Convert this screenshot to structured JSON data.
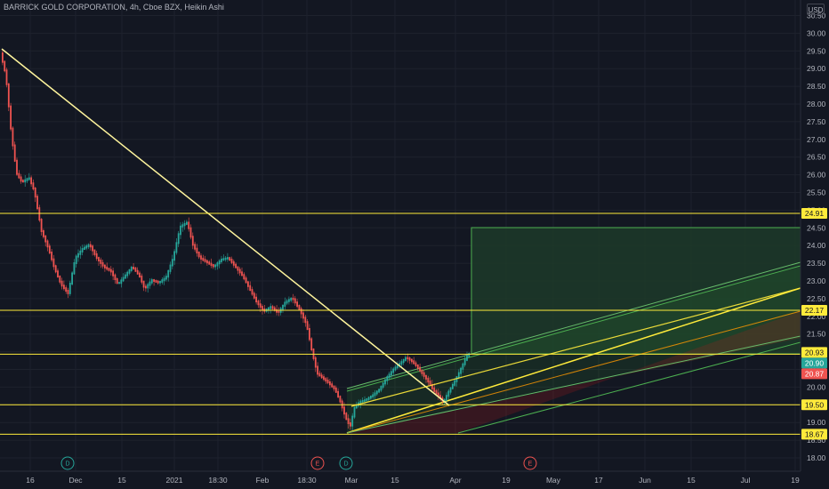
{
  "header": {
    "title": "BARRICK GOLD CORPORATION, 4h, Cboe BZX, Heikin Ashi",
    "currency": "USD"
  },
  "price_axis": {
    "ticks": [
      "30.50",
      "30.00",
      "29.50",
      "29.00",
      "28.50",
      "28.00",
      "27.50",
      "27.00",
      "26.50",
      "26.00",
      "25.50",
      "25.00",
      "24.50",
      "24.00",
      "23.50",
      "23.00",
      "22.50",
      "22.00",
      "21.50",
      "21.00",
      "20.50",
      "20.00",
      "19.50",
      "19.00",
      "18.50",
      "18.00"
    ]
  },
  "time_axis": {
    "ticks": [
      "16",
      "Dec",
      "15",
      "2021",
      "18:30",
      "Feb",
      "18:30",
      "Mar",
      "15",
      "Apr",
      "19",
      "May",
      "17",
      "Jun",
      "15",
      "Jul",
      "19"
    ]
  },
  "horizontal_levels": [
    {
      "value": "24.91",
      "color": "#ffeb3b"
    },
    {
      "value": "22.17",
      "color": "#ffeb3b"
    },
    {
      "value": "20.93",
      "color": "#ffeb3b"
    },
    {
      "value": "19.50",
      "color": "#ffeb3b"
    },
    {
      "value": "18.67",
      "color": "#ffeb3b"
    }
  ],
  "price_tags": [
    {
      "value": "24.91",
      "bg": "#ffeb3b",
      "fg": "#131722"
    },
    {
      "value": "22.17",
      "bg": "#ffeb3b",
      "fg": "#131722"
    },
    {
      "value": "20.93",
      "bg": "#ffeb3b",
      "fg": "#131722"
    },
    {
      "value": "20.90",
      "bg": "#26a69a",
      "fg": "#ffffff"
    },
    {
      "value": "20.87",
      "bg": "#ef5350",
      "fg": "#ffffff"
    },
    {
      "value": "19.50",
      "bg": "#ffeb3b",
      "fg": "#131722"
    },
    {
      "value": "18.67",
      "bg": "#ffeb3b",
      "fg": "#131722"
    }
  ],
  "event_markers": [
    {
      "letter": "D",
      "type": "dividend",
      "color": "#26a69a"
    },
    {
      "letter": "E",
      "type": "earnings",
      "color": "#ef5350"
    },
    {
      "letter": "D",
      "type": "dividend",
      "color": "#26a69a"
    },
    {
      "letter": "E",
      "type": "earnings",
      "color": "#ef5350"
    }
  ],
  "colors": {
    "background": "#131722",
    "up_candle": "#26a69a",
    "down_candle": "#ef5350",
    "level_line": "#ffeb3b",
    "trendline": "#fff59d",
    "target_zone": "#1e3d2a",
    "target_zone_border": "#4caf50",
    "pitchfork_median": "#ffeb3b",
    "pitchfork_upper": "#66bb6a",
    "pitchfork_lower": "#ff9800"
  }
}
